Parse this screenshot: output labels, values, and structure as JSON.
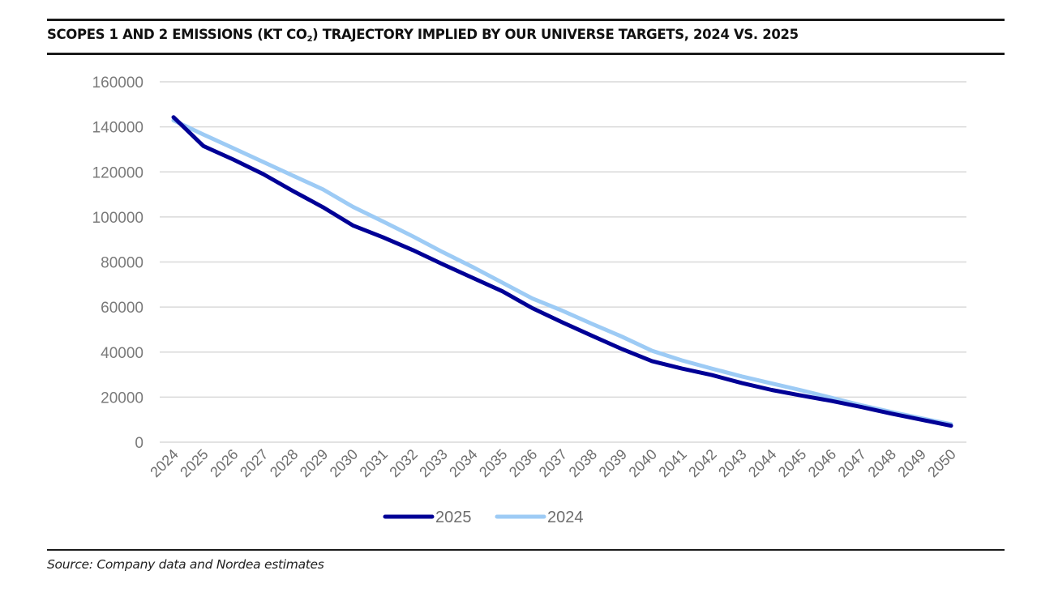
{
  "title": {
    "prefix": "SCOPES 1 AND 2 EMISSIONS (KT CO",
    "subscript": "2",
    "suffix": ") TRAJECTORY IMPLIED BY OUR UNIVERSE TARGETS, 2024 VS. 2025"
  },
  "source": "Source: Company data and Nordea estimates",
  "colors": {
    "series_2025": "#000096",
    "series_2024": "#9DCBF5",
    "grid": "#d9d9d9",
    "rule": "#1a1a1a"
  },
  "chart_data": {
    "type": "line",
    "title": "SCOPES 1 AND 2 EMISSIONS (KT CO2) TRAJECTORY IMPLIED BY OUR UNIVERSE TARGETS, 2024 VS. 2025",
    "xlabel": "",
    "ylabel": "",
    "ylim": [
      0,
      160000
    ],
    "yticks": [
      0,
      20000,
      40000,
      60000,
      80000,
      100000,
      120000,
      140000,
      160000
    ],
    "grid": true,
    "legend_position": "bottom",
    "x": [
      "2024",
      "2025",
      "2026",
      "2027",
      "2028",
      "2029",
      "2030",
      "2031",
      "2032",
      "2033",
      "2034",
      "2035",
      "2036",
      "2037",
      "2038",
      "2039",
      "2040",
      "2041",
      "2042",
      "2043",
      "2044",
      "2045",
      "2046",
      "2047",
      "2048",
      "2049",
      "2050"
    ],
    "series": [
      {
        "name": "2025",
        "color": "#000096",
        "values": [
          144300,
          131500,
          125500,
          119000,
          111500,
          104300,
          96200,
          91000,
          85300,
          79000,
          73000,
          67000,
          59500,
          53200,
          47200,
          41300,
          36000,
          32700,
          29800,
          26300,
          23200,
          20700,
          18300,
          15600,
          12700,
          10000,
          7300
        ]
      },
      {
        "name": "2024",
        "color": "#9DCBF5",
        "values": [
          142900,
          136600,
          130500,
          124400,
          118300,
          112200,
          104500,
          98000,
          91400,
          84400,
          77800,
          70800,
          63800,
          58400,
          52500,
          46800,
          40600,
          36300,
          32700,
          29200,
          26100,
          23000,
          19700,
          16400,
          13400,
          10600,
          8000
        ]
      }
    ]
  }
}
